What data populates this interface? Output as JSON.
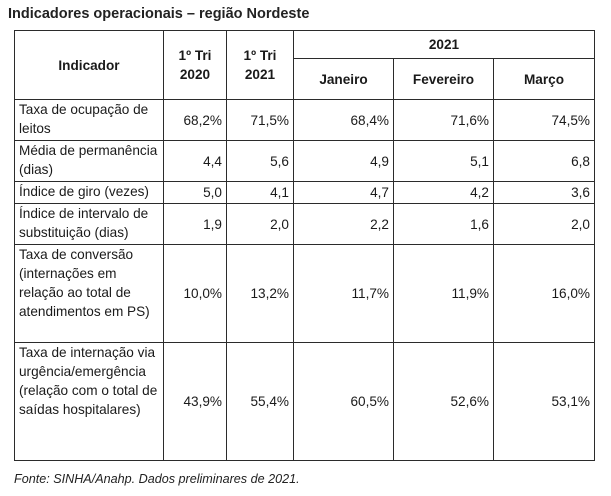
{
  "title": "Indicadores operacionais – região Nordeste",
  "headers": {
    "indicator": "Indicador",
    "q1_2020": [
      "1º Tri",
      "2020"
    ],
    "q1_2021": [
      "1º Tri",
      "2021"
    ],
    "year_group": "2021",
    "months": [
      "Janeiro",
      "Fevereiro",
      "Março"
    ]
  },
  "rows": [
    {
      "label": "Taxa de ocupação de leitos",
      "values": [
        "68,2%",
        "71,5%",
        "68,4%",
        "71,6%",
        "74,5%"
      ]
    },
    {
      "label": "Média de permanência (dias)",
      "values": [
        "4,4",
        "5,6",
        "4,9",
        "5,1",
        "6,8"
      ]
    },
    {
      "label": "Índice de giro (vezes)",
      "values": [
        "5,0",
        "4,1",
        "4,7",
        "4,2",
        "3,6"
      ]
    },
    {
      "label": "Índice de intervalo de substituição (dias)",
      "values": [
        "1,9",
        "2,0",
        "2,2",
        "1,6",
        "2,0"
      ]
    },
    {
      "label": "Taxa de conversão (internações em relação ao total de atendimentos em PS)",
      "values": [
        "10,0%",
        "13,2%",
        "11,7%",
        "11,9%",
        "16,0%"
      ]
    },
    {
      "label": "Taxa de internação via urgência/emergência (relação com o total de saídas hospitalares)",
      "values": [
        "43,9%",
        "55,4%",
        "60,5%",
        "52,6%",
        "53,1%"
      ]
    }
  ],
  "source": "Fonte: SINHA/Anahp. Dados preliminares de 2021."
}
